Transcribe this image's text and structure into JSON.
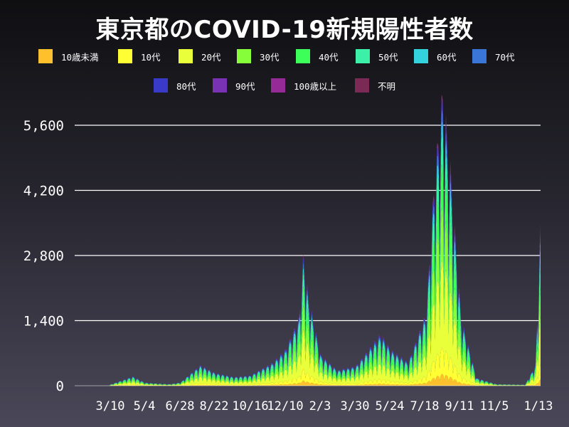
{
  "chart_data": {
    "type": "area",
    "stacked": true,
    "title": "東京都のCOVID-19新規陽性者数",
    "xlabel": "",
    "ylabel": "",
    "ylim": [
      0,
      5800
    ],
    "y_ticks": [
      0,
      1400,
      2800,
      4200,
      5600
    ],
    "y_tick_labels": [
      "0",
      "1,400",
      "2,800",
      "4,200",
      "5,600"
    ],
    "x_tick_labels": [
      "3/10",
      "5/4",
      "6/28",
      "8/22",
      "10/16",
      "12/10",
      "2/3",
      "3/30",
      "5/24",
      "7/18",
      "9/11",
      "11/5",
      "1/13"
    ],
    "grid": "horizontal",
    "legend_position": "top",
    "series_order": [
      "10歳未満",
      "10代",
      "20代",
      "30代",
      "40代",
      "50代",
      "60代",
      "70代",
      "80代",
      "90代",
      "100歳以上",
      "不明"
    ],
    "series_colors": [
      "#ffc02e",
      "#ffff33",
      "#e8ff3a",
      "#86ff3a",
      "#3dff5a",
      "#3df0a8",
      "#33d2dc",
      "#3a76d6",
      "#3a3ac8",
      "#7a32b4",
      "#962a96",
      "#7a2a55"
    ],
    "total_anchors": [
      [
        "3/10",
        20
      ],
      [
        "4/15",
        180
      ],
      [
        "5/4",
        60
      ],
      [
        "6/10",
        30
      ],
      [
        "6/28",
        60
      ],
      [
        "7/30",
        400
      ],
      [
        "8/22",
        250
      ],
      [
        "9/20",
        170
      ],
      [
        "10/16",
        200
      ],
      [
        "11/20",
        450
      ],
      [
        "12/10",
        700
      ],
      [
        "12/31",
        1300
      ],
      [
        "1/7",
        2520
      ],
      [
        "1/15",
        1700
      ],
      [
        "2/3",
        600
      ],
      [
        "3/1",
        300
      ],
      [
        "3/30",
        380
      ],
      [
        "5/8",
        1000
      ],
      [
        "5/24",
        700
      ],
      [
        "6/20",
        450
      ],
      [
        "7/18",
        1400
      ],
      [
        "7/31",
        4000
      ],
      [
        "8/13",
        5700
      ],
      [
        "8/25",
        4200
      ],
      [
        "9/11",
        1300
      ],
      [
        "10/5",
        150
      ],
      [
        "11/5",
        30
      ],
      [
        "12/20",
        20
      ],
      [
        "1/5",
        400
      ],
      [
        "1/13",
        3100
      ]
    ],
    "age_share": {
      "10歳未満": 0.04,
      "10代": 0.09,
      "20代": 0.3,
      "30代": 0.18,
      "40代": 0.15,
      "50代": 0.1,
      "60代": 0.05,
      "70代": 0.04,
      "80代": 0.03,
      "90代": 0.01,
      "100歳以上": 0.005,
      "不明": 0.005
    }
  }
}
